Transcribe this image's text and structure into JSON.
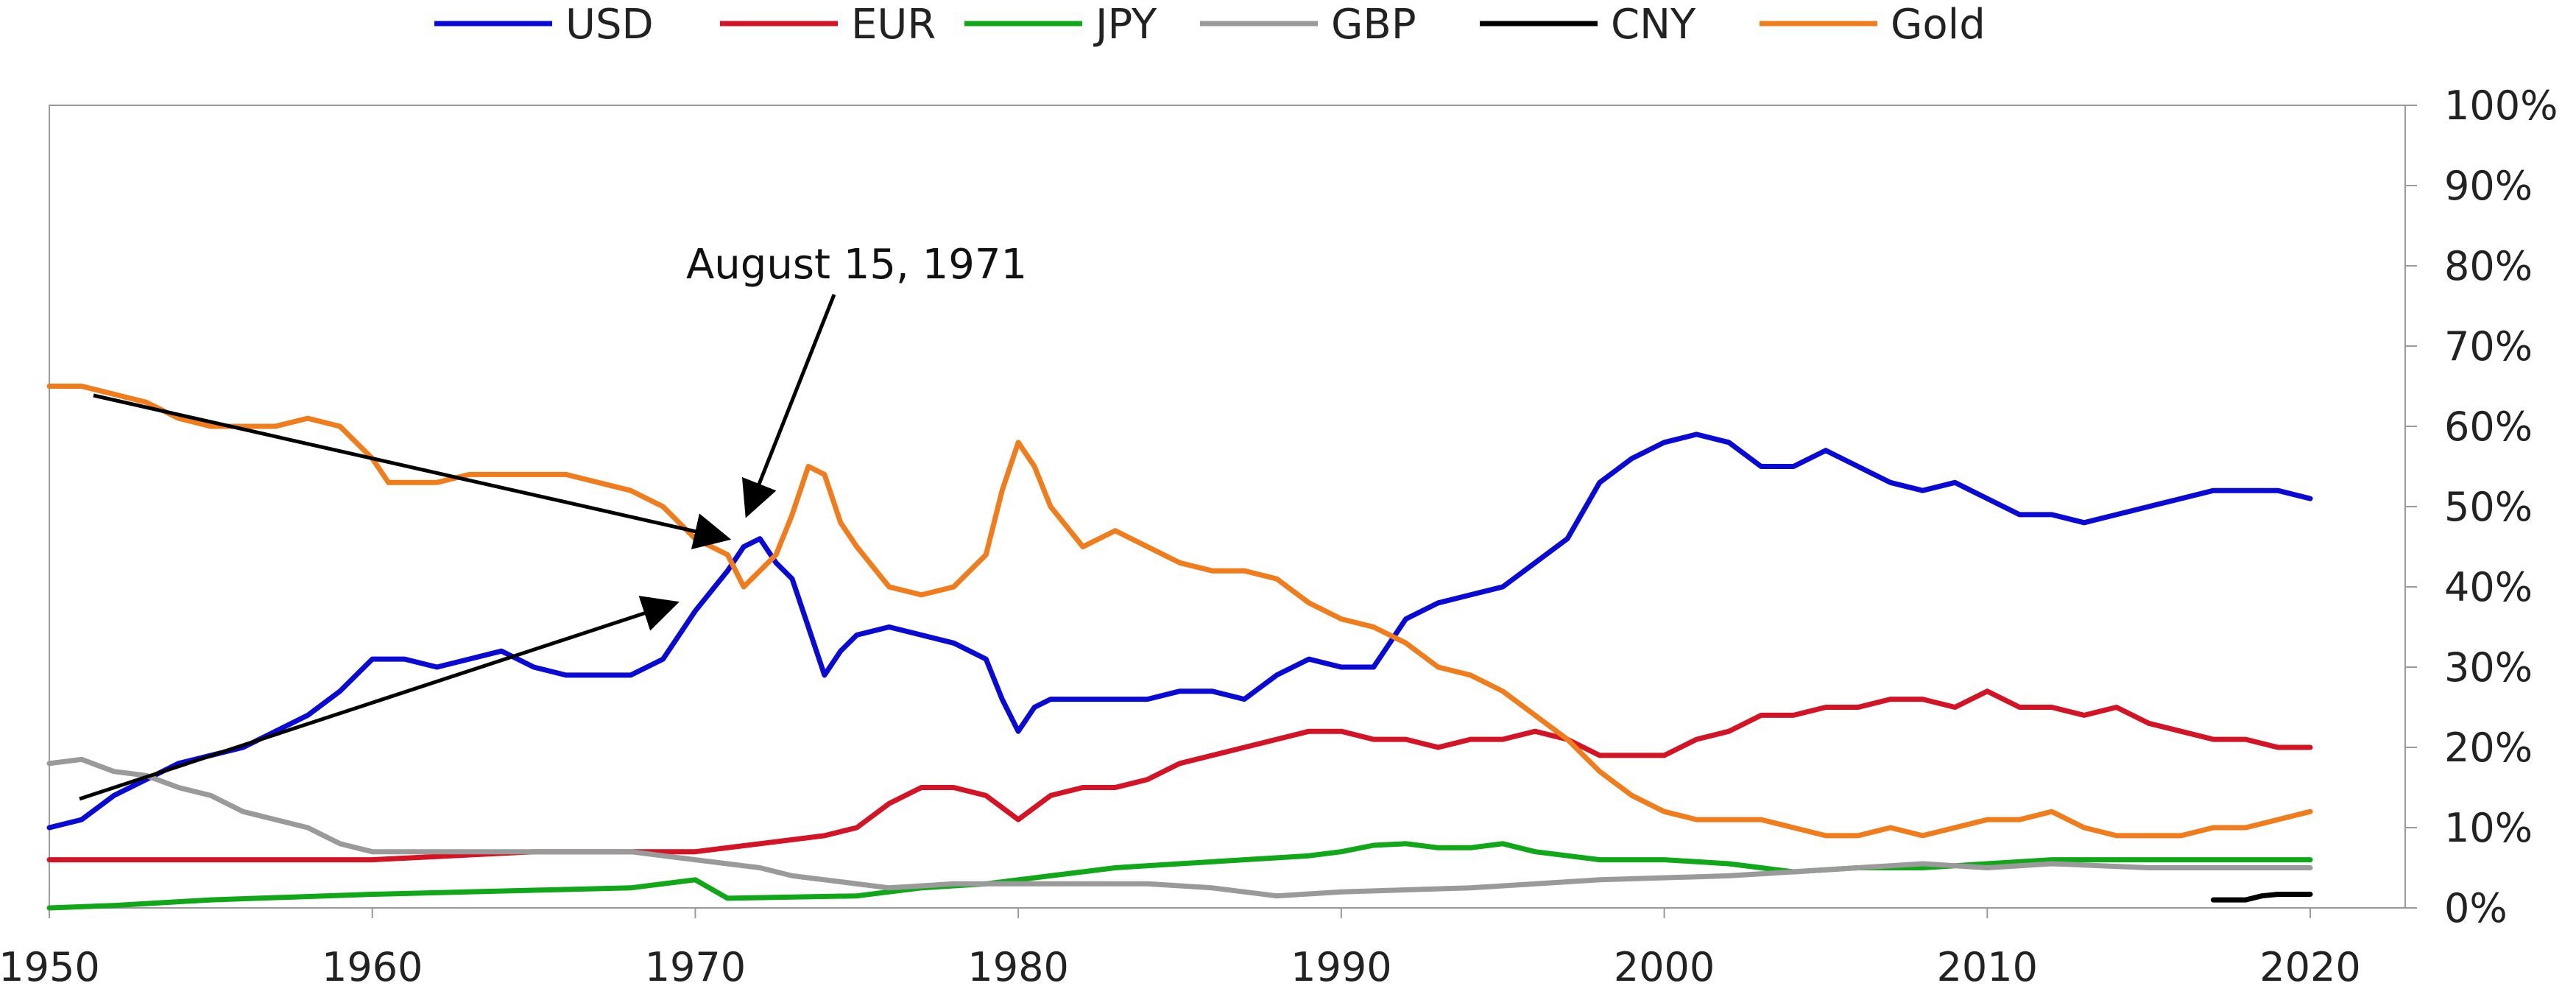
{
  "chart_data": {
    "type": "line",
    "title": "",
    "xlabel": "",
    "ylabel": "",
    "xlim": [
      1950,
      2023
    ],
    "ylim": [
      0,
      100
    ],
    "x_ticks": [
      "1950",
      "1960",
      "1970",
      "1980",
      "1990",
      "2000",
      "2010",
      "2020"
    ],
    "y_ticks": [
      "0%",
      "10%",
      "20%",
      "30%",
      "40%",
      "50%",
      "60%",
      "70%",
      "80%",
      "90%",
      "100%"
    ],
    "y_axis_side": "right",
    "grid": false,
    "legend_placement": "top-center",
    "annotation": {
      "text": "August 15, 1971",
      "points_to": [
        {
          "x": 1971.6,
          "y": 49
        },
        {
          "x": 1971.0,
          "y": 46
        },
        {
          "x": 1969.4,
          "y": 38
        }
      ]
    },
    "series": [
      {
        "name": "USD",
        "color": "#0a0ad6",
        "points": [
          [
            1950,
            10
          ],
          [
            1951,
            11
          ],
          [
            1952,
            14
          ],
          [
            1953,
            16
          ],
          [
            1954,
            18
          ],
          [
            1955,
            19
          ],
          [
            1956,
            20
          ],
          [
            1957,
            22
          ],
          [
            1958,
            24
          ],
          [
            1959,
            27
          ],
          [
            1960,
            31
          ],
          [
            1961,
            31
          ],
          [
            1962,
            30
          ],
          [
            1963,
            31
          ],
          [
            1964,
            32
          ],
          [
            1965,
            30
          ],
          [
            1966,
            29
          ],
          [
            1967,
            29
          ],
          [
            1968,
            29
          ],
          [
            1969,
            31
          ],
          [
            1970,
            37
          ],
          [
            1971,
            42
          ],
          [
            1971.5,
            45
          ],
          [
            1972,
            46
          ],
          [
            1972.5,
            43
          ],
          [
            1973,
            41
          ],
          [
            1973.5,
            35
          ],
          [
            1974,
            29
          ],
          [
            1974.5,
            32
          ],
          [
            1975,
            34
          ],
          [
            1976,
            35
          ],
          [
            1977,
            34
          ],
          [
            1978,
            33
          ],
          [
            1979,
            31
          ],
          [
            1979.5,
            26
          ],
          [
            1980,
            22
          ],
          [
            1980.5,
            25
          ],
          [
            1981,
            26
          ],
          [
            1982,
            26
          ],
          [
            1983,
            26
          ],
          [
            1984,
            26
          ],
          [
            1985,
            27
          ],
          [
            1986,
            27
          ],
          [
            1987,
            26
          ],
          [
            1988,
            29
          ],
          [
            1989,
            31
          ],
          [
            1990,
            30
          ],
          [
            1991,
            30
          ],
          [
            1992,
            36
          ],
          [
            1993,
            38
          ],
          [
            1994,
            39
          ],
          [
            1995,
            40
          ],
          [
            1996,
            43
          ],
          [
            1997,
            46
          ],
          [
            1998,
            53
          ],
          [
            1999,
            56
          ],
          [
            2000,
            58
          ],
          [
            2001,
            59
          ],
          [
            2002,
            58
          ],
          [
            2003,
            55
          ],
          [
            2004,
            55
          ],
          [
            2005,
            57
          ],
          [
            2006,
            55
          ],
          [
            2007,
            53
          ],
          [
            2008,
            52
          ],
          [
            2009,
            53
          ],
          [
            2010,
            51
          ],
          [
            2011,
            49
          ],
          [
            2012,
            49
          ],
          [
            2013,
            48
          ],
          [
            2014,
            49
          ],
          [
            2015,
            50
          ],
          [
            2016,
            51
          ],
          [
            2017,
            52
          ],
          [
            2018,
            52
          ],
          [
            2019,
            52
          ],
          [
            2020,
            51
          ]
        ]
      },
      {
        "name": "EUR",
        "color": "#d41424",
        "points": [
          [
            1950,
            6
          ],
          [
            1955,
            6
          ],
          [
            1960,
            6
          ],
          [
            1965,
            7
          ],
          [
            1968,
            7
          ],
          [
            1970,
            7
          ],
          [
            1972,
            8
          ],
          [
            1974,
            9
          ],
          [
            1975,
            10
          ],
          [
            1976,
            13
          ],
          [
            1977,
            15
          ],
          [
            1978,
            15
          ],
          [
            1979,
            14
          ],
          [
            1980,
            11
          ],
          [
            1981,
            14
          ],
          [
            1982,
            15
          ],
          [
            1983,
            15
          ],
          [
            1984,
            16
          ],
          [
            1985,
            18
          ],
          [
            1986,
            19
          ],
          [
            1987,
            20
          ],
          [
            1988,
            21
          ],
          [
            1989,
            22
          ],
          [
            1990,
            22
          ],
          [
            1991,
            21
          ],
          [
            1992,
            21
          ],
          [
            1993,
            20
          ],
          [
            1994,
            21
          ],
          [
            1995,
            21
          ],
          [
            1996,
            22
          ],
          [
            1997,
            21
          ],
          [
            1998,
            19
          ],
          [
            2000,
            19
          ],
          [
            2001,
            21
          ],
          [
            2002,
            22
          ],
          [
            2003,
            24
          ],
          [
            2004,
            24
          ],
          [
            2005,
            25
          ],
          [
            2006,
            25
          ],
          [
            2007,
            26
          ],
          [
            2008,
            26
          ],
          [
            2009,
            25
          ],
          [
            2010,
            27
          ],
          [
            2011,
            25
          ],
          [
            2012,
            25
          ],
          [
            2013,
            24
          ],
          [
            2014,
            25
          ],
          [
            2015,
            23
          ],
          [
            2016,
            22
          ],
          [
            2017,
            21
          ],
          [
            2018,
            21
          ],
          [
            2019,
            20
          ],
          [
            2020,
            20
          ]
        ]
      },
      {
        "name": "JPY",
        "color": "#10a818",
        "points": [
          [
            1950,
            0
          ],
          [
            1952,
            0.3
          ],
          [
            1955,
            1
          ],
          [
            1960,
            1.7
          ],
          [
            1965,
            2.2
          ],
          [
            1968,
            2.5
          ],
          [
            1970,
            3.5
          ],
          [
            1971,
            1.2
          ],
          [
            1975,
            1.5
          ],
          [
            1977,
            2.5
          ],
          [
            1979,
            3
          ],
          [
            1980,
            3.5
          ],
          [
            1981,
            4
          ],
          [
            1982,
            4.5
          ],
          [
            1983,
            5
          ],
          [
            1985,
            5.5
          ],
          [
            1987,
            6
          ],
          [
            1989,
            6.5
          ],
          [
            1990,
            7
          ],
          [
            1991,
            7.8
          ],
          [
            1992,
            8
          ],
          [
            1993,
            7.5
          ],
          [
            1994,
            7.5
          ],
          [
            1995,
            8
          ],
          [
            1996,
            7
          ],
          [
            1998,
            6
          ],
          [
            2000,
            6
          ],
          [
            2002,
            5.5
          ],
          [
            2003,
            5
          ],
          [
            2004,
            4.5
          ],
          [
            2006,
            5
          ],
          [
            2008,
            5
          ],
          [
            2010,
            5.5
          ],
          [
            2012,
            6
          ],
          [
            2015,
            6
          ],
          [
            2018,
            6
          ],
          [
            2020,
            6
          ]
        ]
      },
      {
        "name": "GBP",
        "color": "#9a9a9a",
        "points": [
          [
            1950,
            18
          ],
          [
            1951,
            18.5
          ],
          [
            1952,
            17
          ],
          [
            1953,
            16.5
          ],
          [
            1954,
            15
          ],
          [
            1955,
            14
          ],
          [
            1956,
            12
          ],
          [
            1957,
            11
          ],
          [
            1958,
            10
          ],
          [
            1959,
            8
          ],
          [
            1960,
            7
          ],
          [
            1962,
            7
          ],
          [
            1965,
            7
          ],
          [
            1968,
            7
          ],
          [
            1970,
            6
          ],
          [
            1972,
            5
          ],
          [
            1973,
            4
          ],
          [
            1974,
            3.5
          ],
          [
            1976,
            2.5
          ],
          [
            1978,
            3
          ],
          [
            1980,
            3
          ],
          [
            1982,
            3
          ],
          [
            1984,
            3
          ],
          [
            1986,
            2.5
          ],
          [
            1988,
            1.5
          ],
          [
            1990,
            2
          ],
          [
            1994,
            2.5
          ],
          [
            1998,
            3.5
          ],
          [
            2002,
            4
          ],
          [
            2004,
            4.5
          ],
          [
            2006,
            5
          ],
          [
            2008,
            5.5
          ],
          [
            2010,
            5
          ],
          [
            2012,
            5.5
          ],
          [
            2015,
            5
          ],
          [
            2018,
            5
          ],
          [
            2020,
            5
          ]
        ]
      },
      {
        "name": "CNY",
        "color": "#000000",
        "points": [
          [
            2017,
            1
          ],
          [
            2018,
            1
          ],
          [
            2018.5,
            1.5
          ],
          [
            2019,
            1.7
          ],
          [
            2020,
            1.7
          ]
        ]
      },
      {
        "name": "Gold",
        "color": "#f07c1c",
        "points": [
          [
            1950,
            65
          ],
          [
            1951,
            65
          ],
          [
            1952,
            64
          ],
          [
            1953,
            63
          ],
          [
            1954,
            61
          ],
          [
            1955,
            60
          ],
          [
            1956,
            60
          ],
          [
            1957,
            60
          ],
          [
            1958,
            61
          ],
          [
            1959,
            60
          ],
          [
            1960,
            56
          ],
          [
            1960.5,
            53
          ],
          [
            1961,
            53
          ],
          [
            1962,
            53
          ],
          [
            1963,
            54
          ],
          [
            1964,
            54
          ],
          [
            1965,
            54
          ],
          [
            1966,
            54
          ],
          [
            1967,
            53
          ],
          [
            1968,
            52
          ],
          [
            1969,
            50
          ],
          [
            1970,
            46
          ],
          [
            1971,
            44
          ],
          [
            1971.5,
            40
          ],
          [
            1972,
            42
          ],
          [
            1972.5,
            44
          ],
          [
            1973,
            49
          ],
          [
            1973.5,
            55
          ],
          [
            1974,
            54
          ],
          [
            1974.5,
            48
          ],
          [
            1975,
            45
          ],
          [
            1976,
            40
          ],
          [
            1977,
            39
          ],
          [
            1978,
            40
          ],
          [
            1979,
            44
          ],
          [
            1979.5,
            52
          ],
          [
            1980,
            58
          ],
          [
            1980.5,
            55
          ],
          [
            1981,
            50
          ],
          [
            1982,
            45
          ],
          [
            1983,
            47
          ],
          [
            1984,
            45
          ],
          [
            1985,
            43
          ],
          [
            1986,
            42
          ],
          [
            1987,
            42
          ],
          [
            1988,
            41
          ],
          [
            1989,
            38
          ],
          [
            1990,
            36
          ],
          [
            1991,
            35
          ],
          [
            1992,
            33
          ],
          [
            1993,
            30
          ],
          [
            1994,
            29
          ],
          [
            1995,
            27
          ],
          [
            1996,
            24
          ],
          [
            1997,
            21
          ],
          [
            1998,
            17
          ],
          [
            1999,
            14
          ],
          [
            2000,
            12
          ],
          [
            2001,
            11
          ],
          [
            2002,
            11
          ],
          [
            2003,
            11
          ],
          [
            2004,
            10
          ],
          [
            2005,
            9
          ],
          [
            2006,
            9
          ],
          [
            2007,
            10
          ],
          [
            2008,
            9
          ],
          [
            2009,
            10
          ],
          [
            2010,
            11
          ],
          [
            2011,
            11
          ],
          [
            2012,
            12
          ],
          [
            2013,
            10
          ],
          [
            2014,
            9
          ],
          [
            2015,
            9
          ],
          [
            2016,
            9
          ],
          [
            2017,
            10
          ],
          [
            2018,
            10
          ],
          [
            2019,
            11
          ],
          [
            2020,
            12
          ]
        ]
      }
    ]
  }
}
